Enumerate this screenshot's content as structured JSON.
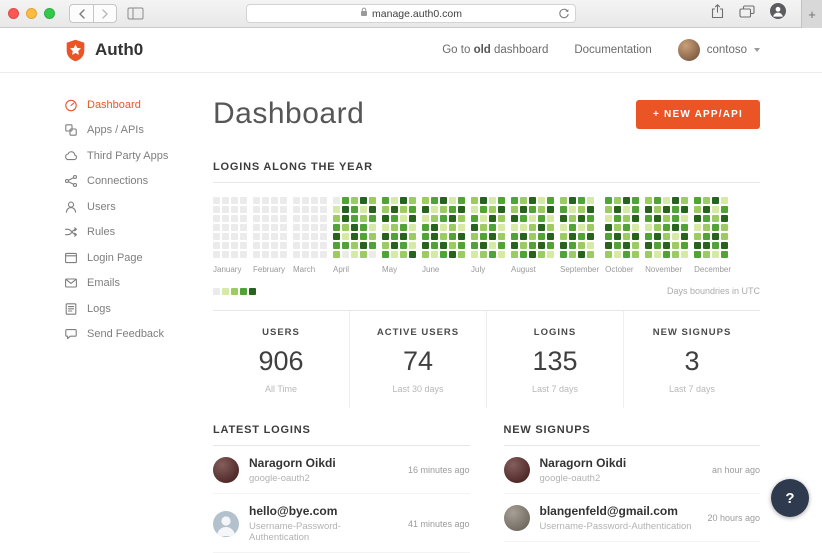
{
  "colors": {
    "accent": "#eb5424"
  },
  "browser": {
    "url": "manage.auth0.com",
    "new_tab_label": "+"
  },
  "header": {
    "brand": "Auth0",
    "goto_pre": "Go to ",
    "goto_bold": "old",
    "goto_post": " dashboard",
    "documentation": "Documentation",
    "username": "contoso"
  },
  "sidebar": {
    "items": [
      {
        "id": "dashboard",
        "label": "Dashboard",
        "icon": "dashboard",
        "active": true
      },
      {
        "id": "apps-apis",
        "label": "Apps / APIs",
        "icon": "apps-apis",
        "active": false
      },
      {
        "id": "third-party-apps",
        "label": "Third Party Apps",
        "icon": "third-party-apps",
        "active": false
      },
      {
        "id": "connections",
        "label": "Connections",
        "icon": "connections",
        "active": false
      },
      {
        "id": "users",
        "label": "Users",
        "icon": "users",
        "active": false
      },
      {
        "id": "rules",
        "label": "Rules",
        "icon": "rules",
        "active": false
      },
      {
        "id": "login-page",
        "label": "Login Page",
        "icon": "login-page",
        "active": false
      },
      {
        "id": "emails",
        "label": "Emails",
        "icon": "emails",
        "active": false
      },
      {
        "id": "logs",
        "label": "Logs",
        "icon": "logs",
        "active": false
      },
      {
        "id": "send-feedback",
        "label": "Send Feedback",
        "icon": "send-feedback",
        "active": false
      }
    ]
  },
  "main": {
    "title": "Dashboard",
    "new_app_button": "+ NEW APP/API",
    "section_title": "LOGINS ALONG THE YEAR",
    "legend_note": "Days boundries in UTC",
    "stats": [
      {
        "label": "USERS",
        "value": "906",
        "sub": "All Time"
      },
      {
        "label": "ACTIVE USERS",
        "value": "74",
        "sub": "Last 30 days"
      },
      {
        "label": "LOGINS",
        "value": "135",
        "sub": "Last 7 days"
      },
      {
        "label": "NEW SIGNUPS",
        "value": "3",
        "sub": "Last 7 days"
      }
    ],
    "latest_logins": {
      "title": "LATEST LOGINS",
      "items": [
        {
          "name": "Naragorn Oikdi",
          "sub": "google-oauth2",
          "time": "16 minutes ago",
          "avatar_bg": "#54201d",
          "avatar_type": "photo"
        },
        {
          "name": "hello@bye.com",
          "sub": "Username-Password-Authentication",
          "time": "41 minutes ago",
          "avatar_bg": "#b3c1cc",
          "avatar_type": "silhouette"
        }
      ]
    },
    "new_signups": {
      "title": "NEW SIGNUPS",
      "items": [
        {
          "name": "Naragorn Oikdi",
          "sub": "google-oauth2",
          "time": "an hour ago",
          "avatar_bg": "#54201d",
          "avatar_type": "photo"
        },
        {
          "name": "blangenfeld@gmail.com",
          "sub": "Username-Password-Authentication",
          "time": "20 hours ago",
          "avatar_bg": "#857b6e",
          "avatar_type": "photo"
        }
      ]
    }
  },
  "help_button": "?",
  "chart_data": {
    "type": "heatmap",
    "title": "LOGINS ALONG THE YEAR",
    "note": "Days boundries in UTC",
    "rows": 7,
    "legend_levels": [
      0,
      1,
      2,
      3,
      4
    ],
    "intensity_colors": [
      "#ebebeb",
      "#d6e9a5",
      "#9ccb62",
      "#51a335",
      "#27631d"
    ],
    "months": [
      {
        "label": "January",
        "cols": [
          "0000000",
          "0000000",
          "0000000",
          "0000000"
        ]
      },
      {
        "label": "February",
        "cols": [
          "0000000",
          "0000000",
          "0000000",
          "0000000"
        ]
      },
      {
        "label": "March",
        "cols": [
          "0000000",
          "0000000",
          "0000000",
          "0000000"
        ]
      },
      {
        "label": "April",
        "cols": [
          "0123432",
          "3442130",
          "2334421",
          "4123342",
          "2431230"
        ]
      },
      {
        "label": "May",
        "cols": [
          "3241423",
          "1432341",
          "4213432",
          "2341214"
        ]
      },
      {
        "label": "June",
        "cols": [
          "2413342",
          "3124431",
          "4231243",
          "1342324",
          "3421432"
        ]
      },
      {
        "label": "July",
        "cols": [
          "2134231",
          "4312342",
          "1243413",
          "3421231"
        ]
      },
      {
        "label": "August",
        "cols": [
          "3241342",
          "2431423",
          "4312234",
          "1234342",
          "3412431"
        ]
      },
      {
        "label": "September",
        "cols": [
          "2341243",
          "4123432",
          "3241324",
          "1432412"
        ]
      },
      {
        "label": "October",
        "cols": [
          "3214342",
          "2432431",
          "4123243",
          "3341422"
        ]
      },
      {
        "label": "November",
        "cols": [
          "2431342",
          "3242431",
          "1423243",
          "4334122",
          "2413431"
        ]
      },
      {
        "label": "December",
        "cols": [
          "3241243",
          "2432342",
          "4123431",
          "1342243"
        ]
      }
    ]
  }
}
